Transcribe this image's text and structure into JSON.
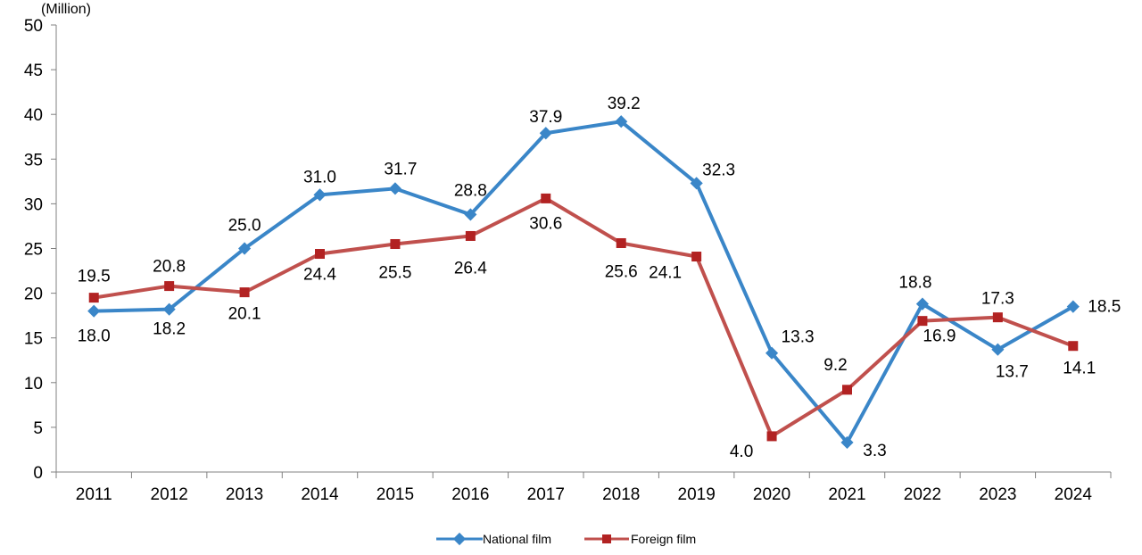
{
  "chart_data": {
    "type": "line",
    "title": "",
    "xlabel": "",
    "ylabel": "",
    "y_unit": "(Million)",
    "ylim": [
      0,
      50
    ],
    "y_ticks": [
      "0",
      "5",
      "10",
      "15",
      "20",
      "25",
      "30",
      "35",
      "40",
      "45",
      "50"
    ],
    "categories": [
      "2011",
      "2012",
      "2013",
      "2014",
      "2015",
      "2016",
      "2017",
      "2018",
      "2019",
      "2020",
      "2021",
      "2022",
      "2023",
      "2024"
    ],
    "grid": false,
    "legend_position": "bottom-center",
    "series": [
      {
        "name": "National film",
        "color": "#3A86C8",
        "marker": "diamond",
        "values": [
          18.0,
          18.2,
          25.0,
          31.0,
          31.7,
          28.8,
          37.9,
          39.2,
          32.3,
          13.3,
          3.3,
          18.8,
          13.7,
          18.5
        ],
        "labels": [
          "18.0",
          "18.2",
          "25.0",
          "31.0",
          "31.7",
          "28.8",
          "37.9",
          "39.2",
          "32.3",
          "13.3",
          "3.3",
          "18.8",
          "13.7",
          "18.5"
        ]
      },
      {
        "name": "Foreign film",
        "color": "#C0504D",
        "marker_color": "#B22222",
        "marker": "square",
        "values": [
          19.5,
          20.8,
          20.1,
          24.4,
          25.5,
          26.4,
          30.6,
          25.6,
          24.1,
          4.0,
          9.2,
          16.9,
          17.3,
          14.1
        ],
        "labels": [
          "19.5",
          "20.8",
          "20.1",
          "24.4",
          "25.5",
          "26.4",
          "30.6",
          "25.6",
          "24.1",
          "4.0",
          "9.2",
          "16.9",
          "17.3",
          "14.1"
        ]
      }
    ]
  }
}
